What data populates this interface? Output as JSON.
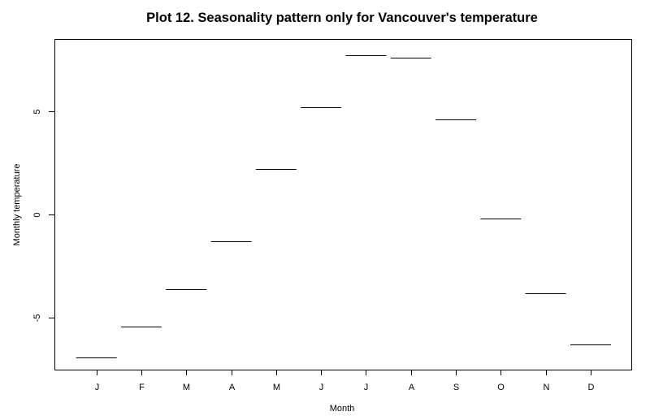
{
  "chart_data": {
    "type": "line",
    "title": "Plot 12. Seasonality pattern only for Vancouver's temperature",
    "xlabel": "Month",
    "ylabel": "Monthly temperature",
    "categories": [
      "J",
      "F",
      "M",
      "A",
      "M",
      "J",
      "J",
      "A",
      "S",
      "O",
      "N",
      "D"
    ],
    "series": [
      {
        "values": [
          -6.9,
          -5.4,
          -3.6,
          -1.3,
          2.2,
          5.2,
          7.7,
          7.6,
          4.6,
          -0.2,
          -3.8,
          -6.3
        ]
      }
    ],
    "ylim": [
      -7.5,
      8.5
    ],
    "yticks": [
      -5,
      0,
      5
    ],
    "ytick_labels": [
      "-5",
      "0",
      "5"
    ],
    "grid": false,
    "colors": {
      "line": "#000000",
      "axis": "#000000",
      "background": "#ffffff"
    }
  }
}
